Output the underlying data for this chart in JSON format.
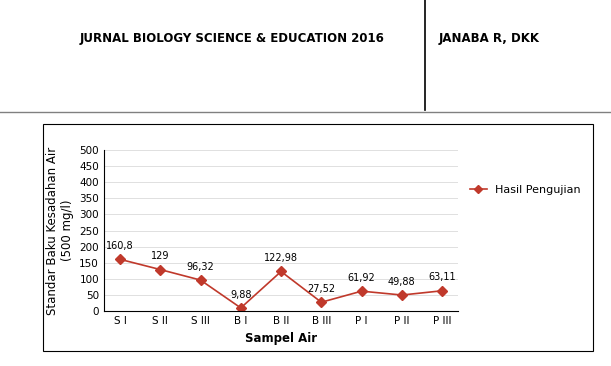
{
  "categories": [
    "S I",
    "S II",
    "S III",
    "B I",
    "B II",
    "B III",
    "P I",
    "P II",
    "P III"
  ],
  "values": [
    160.8,
    129,
    96.32,
    9.88,
    122.98,
    27.52,
    61.92,
    49.88,
    63.11
  ],
  "labels": [
    "160,8",
    "129",
    "96,32",
    "9,88",
    "122,98",
    "27,52",
    "61,92",
    "49,88",
    "63,11"
  ],
  "line_color": "#C0392B",
  "marker_style": "D",
  "marker_size": 5,
  "ylabel": "Standar Baku Kesadahan Air\n(500 mg/l)",
  "xlabel": "Sampel Air",
  "ylim": [
    0,
    500
  ],
  "yticks": [
    0,
    50,
    100,
    150,
    200,
    250,
    300,
    350,
    400,
    450,
    500
  ],
  "legend_label": "Hasil Pengujian",
  "header_left": "JURNAL BIOLOGY SCIENCE & EDUCATION 2016",
  "header_right": "JANABA R, DKK",
  "bg_color": "#ffffff",
  "plot_bg_color": "#ffffff",
  "header_font_size": 8.5,
  "axis_label_fontsize": 8.5,
  "tick_fontsize": 7.5,
  "legend_fontsize": 8,
  "data_label_fontsize": 7
}
